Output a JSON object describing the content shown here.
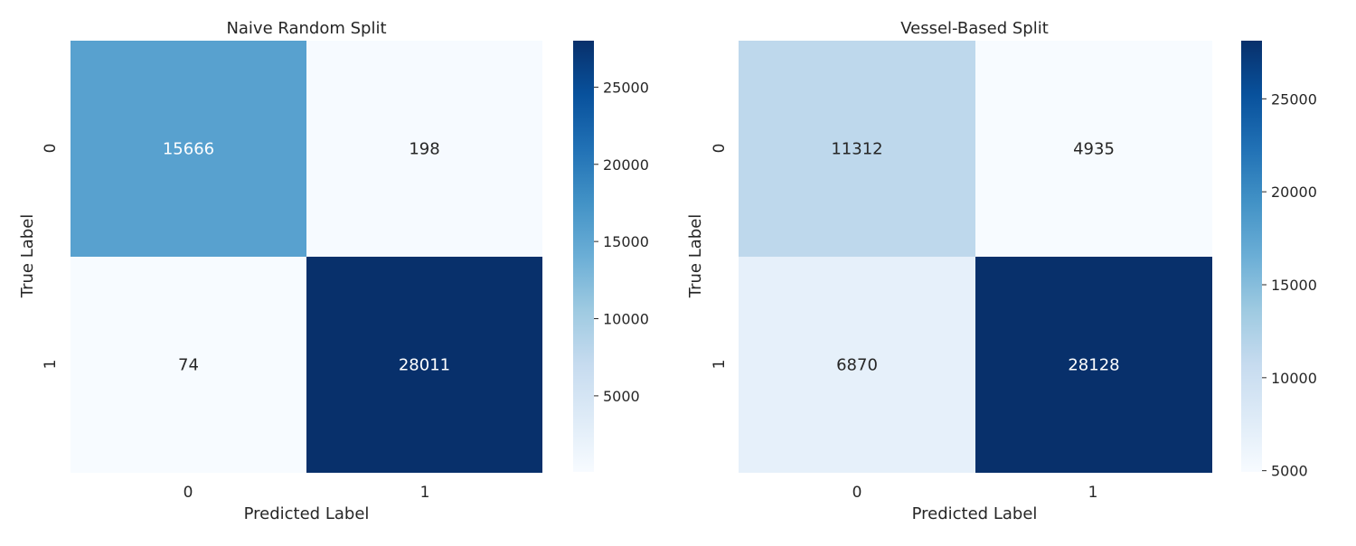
{
  "chart_data": [
    {
      "type": "heatmap",
      "title": "Naive Random Split",
      "xlabel": "Predicted Label",
      "ylabel": "True Label",
      "x_categories": [
        "0",
        "1"
      ],
      "y_categories": [
        "0",
        "1"
      ],
      "matrix": [
        [
          15666,
          198
        ],
        [
          74,
          28011
        ]
      ],
      "colormap": "Blues",
      "color_range": [
        74,
        28011
      ],
      "colorbar_ticks": [
        5000,
        10000,
        15000,
        20000,
        25000
      ],
      "annot_light_color": "#ffffff",
      "annot_dark_color": "#262626"
    },
    {
      "type": "heatmap",
      "title": "Vessel-Based Split",
      "xlabel": "Predicted Label",
      "ylabel": "True Label",
      "x_categories": [
        "0",
        "1"
      ],
      "y_categories": [
        "0",
        "1"
      ],
      "matrix": [
        [
          11312,
          4935
        ],
        [
          6870,
          28128
        ]
      ],
      "colormap": "Blues",
      "color_range": [
        4935,
        28128
      ],
      "colorbar_ticks": [
        5000,
        10000,
        15000,
        20000,
        25000
      ],
      "annot_light_color": "#ffffff",
      "annot_dark_color": "#262626"
    }
  ]
}
